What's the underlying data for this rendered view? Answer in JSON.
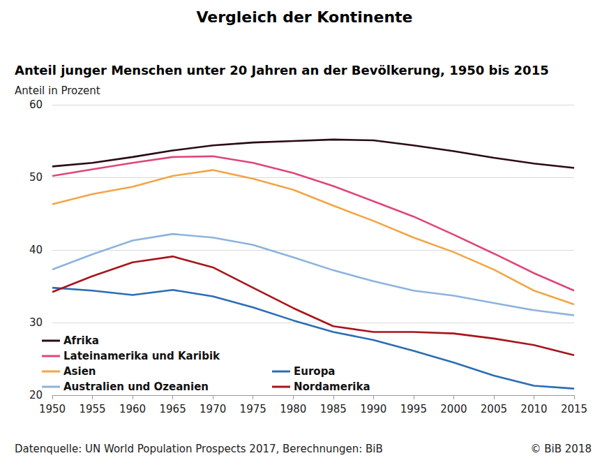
{
  "chart_data": {
    "type": "line",
    "title": "Vergleich der Kontinente",
    "subtitle": "Anteil junger Menschen unter 20 Jahren an der Bevölkerung, 1950 bis 2015",
    "y_label": "Anteil in Prozent",
    "source": "Datenquelle: UN World Population Prospects 2017, Berechnungen: BiB",
    "copyright": "© BiB 2018",
    "categories": [
      "1950",
      "1955",
      "1960",
      "1965",
      "1970",
      "1975",
      "1980",
      "1985",
      "1990",
      "1995",
      "2000",
      "2005",
      "2010",
      "2015"
    ],
    "series": [
      {
        "name": "Afrika",
        "color": "#2a0a16",
        "values": [
          51.5,
          52.0,
          52.8,
          53.7,
          54.4,
          54.8,
          55.0,
          55.2,
          55.1,
          54.4,
          53.6,
          52.7,
          51.9,
          51.3
        ]
      },
      {
        "name": "Lateinamerika und Karibik",
        "color": "#e0457b",
        "values": [
          50.2,
          51.1,
          52.0,
          52.8,
          52.9,
          52.0,
          50.6,
          48.8,
          46.7,
          44.6,
          42.1,
          39.5,
          36.8,
          34.4
        ]
      },
      {
        "name": "Asien",
        "color": "#f2a545",
        "values": [
          46.3,
          47.7,
          48.7,
          50.2,
          51.0,
          49.8,
          48.3,
          46.1,
          44.0,
          41.7,
          39.7,
          37.3,
          34.4,
          32.5
        ]
      },
      {
        "name": "Australien und Ozeanien",
        "color": "#8db3dd",
        "values": [
          37.3,
          39.4,
          41.3,
          42.2,
          41.7,
          40.7,
          39.0,
          37.2,
          35.7,
          34.4,
          33.7,
          32.7,
          31.7,
          31.0
        ]
      },
      {
        "name": "Europa",
        "color": "#2a6db5",
        "values": [
          34.8,
          34.4,
          33.8,
          34.5,
          33.6,
          32.1,
          30.3,
          28.7,
          27.6,
          26.1,
          24.5,
          22.7,
          21.3,
          20.9
        ]
      },
      {
        "name": "Nordamerika",
        "color": "#a8141b",
        "values": [
          34.2,
          36.4,
          38.3,
          39.1,
          37.6,
          34.8,
          32.0,
          29.5,
          28.7,
          28.7,
          28.5,
          27.8,
          26.9,
          25.5
        ]
      }
    ],
    "ylim": [
      20,
      60
    ],
    "yticks": [
      20,
      30,
      40,
      50,
      60
    ],
    "grid": true,
    "legend": "lower left"
  }
}
